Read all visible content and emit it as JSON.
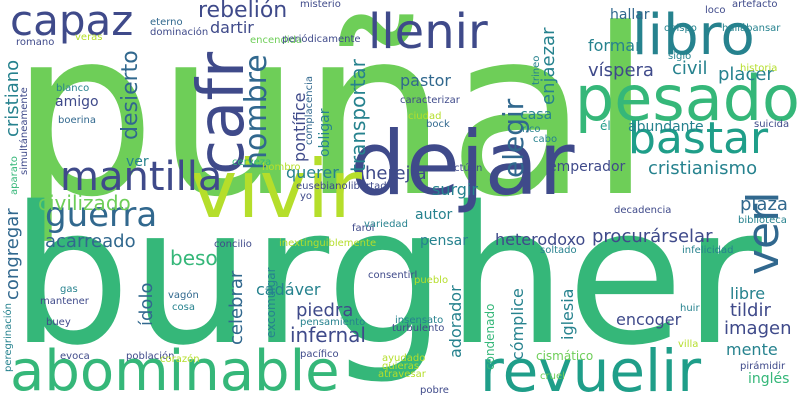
{
  "background_color": "#ffffff",
  "palette": [
    "#3f4a8a",
    "#31688e",
    "#26828e",
    "#1f9e89",
    "#35b779",
    "#6ece58",
    "#b5de2b",
    "#443983"
  ],
  "words": [
    {
      "text": "puñal",
      "color": "#6ece58"
    },
    {
      "text": "burgher",
      "color": "#35b779"
    },
    {
      "text": "dejar",
      "color": "#3f4a8a"
    },
    {
      "text": "vivir",
      "color": "#b5de2b"
    },
    {
      "text": "abominable",
      "color": "#35b779"
    },
    {
      "text": "revuelir",
      "color": "#1f9e89"
    },
    {
      "text": "pesado",
      "color": "#35b779"
    },
    {
      "text": "libro",
      "color": "#26828e"
    },
    {
      "text": "capaz",
      "color": "#3f4a8a"
    },
    {
      "text": "cafr",
      "color": "#3f4a8a"
    },
    {
      "text": "llenir",
      "color": "#3f4a8a"
    },
    {
      "text": "bastar",
      "color": "#1f9e89"
    },
    {
      "text": "mantilla",
      "color": "#3f4a8a"
    },
    {
      "text": "guerra",
      "color": "#31688e"
    },
    {
      "text": "hombre",
      "color": "#31688e"
    },
    {
      "text": "elegir",
      "color": "#31688e"
    },
    {
      "text": "verl",
      "color": "#31688e"
    },
    {
      "text": "rebelión",
      "color": "#3f4a8a"
    },
    {
      "text": "dartir",
      "color": "#3f4a8a"
    },
    {
      "text": "hallar",
      "color": "#31688e"
    },
    {
      "text": "placer",
      "color": "#26828e"
    },
    {
      "text": "formar",
      "color": "#26828e"
    },
    {
      "text": "víspera",
      "color": "#3f4a8a"
    },
    {
      "text": "civil",
      "color": "#26828e"
    },
    {
      "text": "abundante",
      "color": "#26828e"
    },
    {
      "text": "cristianismo",
      "color": "#26828e"
    },
    {
      "text": "emperador",
      "color": "#3f4a8a"
    },
    {
      "text": "transportar",
      "color": "#26828e"
    },
    {
      "text": "enjaezar",
      "color": "#26828e"
    },
    {
      "text": "pastor",
      "color": "#31688e"
    },
    {
      "text": "casa",
      "color": "#26828e"
    },
    {
      "text": "desierto",
      "color": "#31688e"
    },
    {
      "text": "amigo",
      "color": "#3f4a8a"
    },
    {
      "text": "cristiano",
      "color": "#26828e"
    },
    {
      "text": "congregar",
      "color": "#31688e"
    },
    {
      "text": "civilizado",
      "color": "#6ece58"
    },
    {
      "text": "acarreado",
      "color": "#31688e"
    },
    {
      "text": "ver",
      "color": "#26828e"
    },
    {
      "text": "querer",
      "color": "#26828e"
    },
    {
      "text": "herejía",
      "color": "#3f4a8a"
    },
    {
      "text": "surgir",
      "color": "#26828e"
    },
    {
      "text": "pontífice",
      "color": "#3f4a8a"
    },
    {
      "text": "obligar",
      "color": "#26828e"
    },
    {
      "text": "heterodoxo",
      "color": "#3f4a8a"
    },
    {
      "text": "procurárselar",
      "color": "#3f4a8a"
    },
    {
      "text": "plaza",
      "color": "#31688e"
    },
    {
      "text": "autor",
      "color": "#26828e"
    },
    {
      "text": "pensar",
      "color": "#26828e"
    },
    {
      "text": "beso",
      "color": "#35b779"
    },
    {
      "text": "ídolo",
      "color": "#31688e"
    },
    {
      "text": "celebrar",
      "color": "#31688e"
    },
    {
      "text": "cadáver",
      "color": "#26828e"
    },
    {
      "text": "piedra",
      "color": "#3f4a8a"
    },
    {
      "text": "infernal",
      "color": "#3f4a8a"
    },
    {
      "text": "adorador",
      "color": "#26828e"
    },
    {
      "text": "excomulgar",
      "color": "#26828e"
    },
    {
      "text": "iglesia",
      "color": "#26828e"
    },
    {
      "text": "cómplice",
      "color": "#26828e"
    },
    {
      "text": "condenado",
      "color": "#35b779"
    },
    {
      "text": "encoger",
      "color": "#3f4a8a"
    },
    {
      "text": "libre",
      "color": "#26828e"
    },
    {
      "text": "tildir",
      "color": "#3f4a8a"
    },
    {
      "text": "imagen",
      "color": "#3f4a8a"
    },
    {
      "text": "mente",
      "color": "#26828e"
    },
    {
      "text": "inglés",
      "color": "#35b779"
    },
    {
      "text": "cismático",
      "color": "#6ece58"
    },
    {
      "text": "misterio",
      "color": "#3f4a8a"
    },
    {
      "text": "eterno",
      "color": "#31688e"
    },
    {
      "text": "dominación",
      "color": "#3f4a8a"
    },
    {
      "text": "encendida",
      "color": "#6ece58"
    },
    {
      "text": "periódicamente",
      "color": "#3f4a8a"
    },
    {
      "text": "caracterizar",
      "color": "#3f4a8a"
    },
    {
      "text": "ciudad",
      "color": "#b5de2b"
    },
    {
      "text": "veras",
      "color": "#b5de2b"
    },
    {
      "text": "romano",
      "color": "#3f4a8a"
    },
    {
      "text": "artefacto",
      "color": "#3f4a8a"
    },
    {
      "text": "loco",
      "color": "#3f4a8a"
    },
    {
      "text": "obispo",
      "color": "#26828e"
    },
    {
      "text": "hallábansar",
      "color": "#26828e"
    },
    {
      "text": "siglo",
      "color": "#26828e"
    },
    {
      "text": "historia",
      "color": "#b5de2b"
    },
    {
      "text": "trineo",
      "color": "#26828e"
    },
    {
      "text": "blanco",
      "color": "#26828e"
    },
    {
      "text": "boerina",
      "color": "#31688e"
    },
    {
      "text": "simultáneamente",
      "color": "#3f4a8a"
    },
    {
      "text": "aparato",
      "color": "#35b779"
    },
    {
      "text": "complacencia",
      "color": "#31688e"
    },
    {
      "text": "bock",
      "color": "#31688e"
    },
    {
      "text": "rico",
      "color": "#26828e"
    },
    {
      "text": "cabo",
      "color": "#26828e"
    },
    {
      "text": "él",
      "color": "#1f9e89"
    },
    {
      "text": "suicida",
      "color": "#3f4a8a"
    },
    {
      "text": "cerveza",
      "color": "#35b779"
    },
    {
      "text": "hombro",
      "color": "#b5de2b"
    },
    {
      "text": "actúen",
      "color": "#3f4a8a"
    },
    {
      "text": "eusebiano",
      "color": "#3f4a8a"
    },
    {
      "text": "libertad",
      "color": "#3f4a8a"
    },
    {
      "text": "yo",
      "color": "#3f4a8a"
    },
    {
      "text": "farol",
      "color": "#3f4a8a"
    },
    {
      "text": "variedad",
      "color": "#26828e"
    },
    {
      "text": "soltado",
      "color": "#26828e"
    },
    {
      "text": "decadencia",
      "color": "#3f4a8a"
    },
    {
      "text": "biblioteca",
      "color": "#26828e"
    },
    {
      "text": "concilio",
      "color": "#3f4a8a"
    },
    {
      "text": "inextinguiblemente",
      "color": "#b5de2b"
    },
    {
      "text": "infelicidad",
      "color": "#26828e"
    },
    {
      "text": "gas",
      "color": "#26828e"
    },
    {
      "text": "mantener",
      "color": "#3f4a8a"
    },
    {
      "text": "vagón",
      "color": "#31688e"
    },
    {
      "text": "cosa",
      "color": "#26828e"
    },
    {
      "text": "buey",
      "color": "#3f4a8a"
    },
    {
      "text": "peregrinación",
      "color": "#26828e"
    },
    {
      "text": "consentirl",
      "color": "#3f4a8a"
    },
    {
      "text": "pueblo",
      "color": "#b5de2b"
    },
    {
      "text": "insensato",
      "color": "#26828e"
    },
    {
      "text": "turbulento",
      "color": "#3f4a8a"
    },
    {
      "text": "pensamiento",
      "color": "#26828e"
    },
    {
      "text": "huir",
      "color": "#26828e"
    },
    {
      "text": "villa",
      "color": "#b5de2b"
    },
    {
      "text": "pirámidir",
      "color": "#3f4a8a"
    },
    {
      "text": "evoca",
      "color": "#3f4a8a"
    },
    {
      "text": "población",
      "color": "#3f4a8a"
    },
    {
      "text": "corazón",
      "color": "#b5de2b"
    },
    {
      "text": "pacífico",
      "color": "#3f4a8a"
    },
    {
      "text": "ayudado",
      "color": "#b5de2b"
    },
    {
      "text": "atravesar",
      "color": "#b5de2b"
    },
    {
      "text": "quieras",
      "color": "#b5de2b"
    },
    {
      "text": "pobre",
      "color": "#3f4a8a"
    },
    {
      "text": "cruel",
      "color": "#6ece58"
    }
  ]
}
